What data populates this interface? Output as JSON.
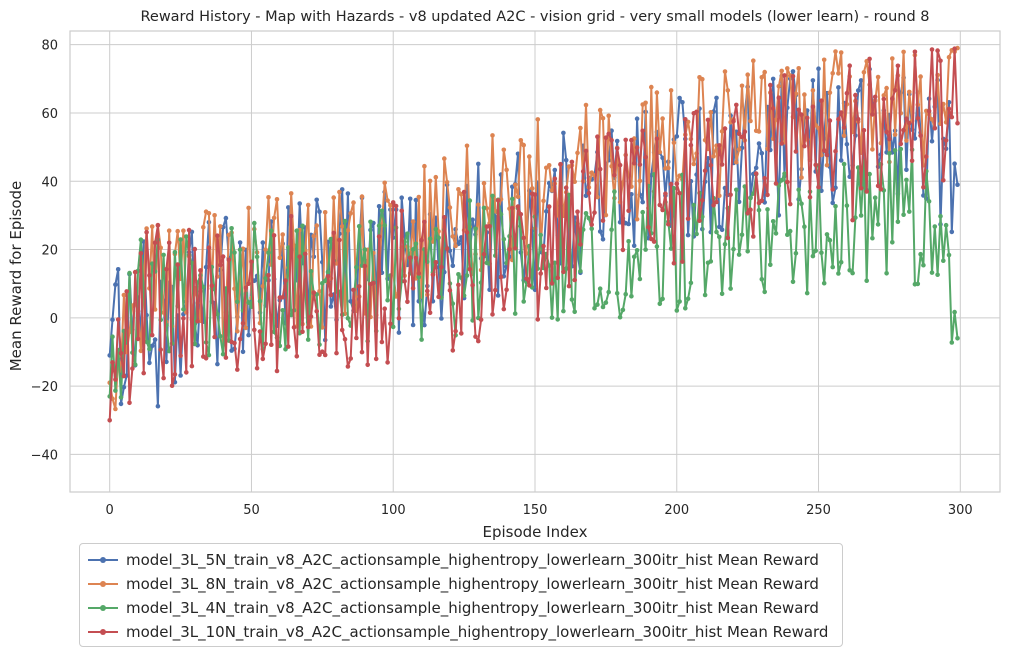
{
  "chart_data": {
    "type": "line",
    "title": "Reward History - Map with Hazards - v8 updated A2C - vision grid - very small models (lower learn) - round 8",
    "xlabel": "Episode Index",
    "ylabel": "Mean Reward for Episode",
    "xlim": [
      -14,
      314
    ],
    "ylim": [
      -51,
      84
    ],
    "xticks": [
      0,
      50,
      100,
      150,
      200,
      250,
      300
    ],
    "yticks": [
      -40,
      -20,
      0,
      20,
      40,
      60,
      80
    ],
    "grid": true,
    "legend_position": "below-left",
    "x": "episodes 0-299 (one point per episode)",
    "series": [
      {
        "name": "model_3L_5N_train_v8_A2C_actionsample_highentropy_lowerlearn_300itr_hist Mean Reward",
        "color": "#4c72b0",
        "start": -11,
        "end": 39,
        "control": [
          [
            0,
            -11
          ],
          [
            10,
            4
          ],
          [
            20,
            -13
          ],
          [
            30,
            6
          ],
          [
            40,
            8
          ],
          [
            50,
            10
          ],
          [
            60,
            14
          ],
          [
            70,
            12
          ],
          [
            80,
            16
          ],
          [
            90,
            15
          ],
          [
            100,
            17
          ],
          [
            110,
            16
          ],
          [
            120,
            20
          ],
          [
            130,
            24
          ],
          [
            140,
            26
          ],
          [
            150,
            30
          ],
          [
            160,
            33
          ],
          [
            170,
            36
          ],
          [
            180,
            38
          ],
          [
            190,
            42
          ],
          [
            200,
            45
          ],
          [
            210,
            46
          ],
          [
            220,
            44
          ],
          [
            230,
            48
          ],
          [
            240,
            50
          ],
          [
            250,
            52
          ],
          [
            260,
            53
          ],
          [
            270,
            52
          ],
          [
            280,
            55
          ],
          [
            290,
            54
          ],
          [
            299,
            39
          ]
        ],
        "spread": 22,
        "min": -33,
        "max": 76
      },
      {
        "name": "model_3L_8N_train_v8_A2C_actionsample_highentropy_lowerlearn_300itr_hist Mean Reward",
        "color": "#dd8452",
        "start": -19,
        "end": 79,
        "control": [
          [
            0,
            -19
          ],
          [
            10,
            8
          ],
          [
            20,
            10
          ],
          [
            30,
            12
          ],
          [
            40,
            12
          ],
          [
            50,
            14
          ],
          [
            60,
            18
          ],
          [
            70,
            16
          ],
          [
            80,
            18
          ],
          [
            90,
            18
          ],
          [
            100,
            22
          ],
          [
            110,
            26
          ],
          [
            120,
            28
          ],
          [
            130,
            32
          ],
          [
            140,
            35
          ],
          [
            150,
            38
          ],
          [
            160,
            40
          ],
          [
            170,
            44
          ],
          [
            180,
            46
          ],
          [
            190,
            48
          ],
          [
            200,
            50
          ],
          [
            210,
            52
          ],
          [
            220,
            54
          ],
          [
            230,
            56
          ],
          [
            240,
            58
          ],
          [
            250,
            60
          ],
          [
            260,
            62
          ],
          [
            270,
            62
          ],
          [
            280,
            63
          ],
          [
            290,
            64
          ],
          [
            299,
            79
          ]
        ],
        "spread": 20,
        "min": -27,
        "max": 79
      },
      {
        "name": "model_3L_4N_train_v8_A2C_actionsample_highentropy_lowerlearn_300itr_hist Mean Reward",
        "color": "#55a868",
        "start": -23,
        "end": -6,
        "control": [
          [
            0,
            -23
          ],
          [
            10,
            6
          ],
          [
            20,
            6
          ],
          [
            30,
            6
          ],
          [
            40,
            8
          ],
          [
            50,
            8
          ],
          [
            60,
            10
          ],
          [
            70,
            12
          ],
          [
            80,
            10
          ],
          [
            90,
            12
          ],
          [
            100,
            14
          ],
          [
            110,
            12
          ],
          [
            120,
            14
          ],
          [
            130,
            16
          ],
          [
            140,
            16
          ],
          [
            150,
            18
          ],
          [
            160,
            18
          ],
          [
            170,
            20
          ],
          [
            180,
            20
          ],
          [
            190,
            22
          ],
          [
            200,
            22
          ],
          [
            210,
            24
          ],
          [
            220,
            24
          ],
          [
            230,
            24
          ],
          [
            240,
            26
          ],
          [
            250,
            26
          ],
          [
            260,
            26
          ],
          [
            270,
            28
          ],
          [
            280,
            30
          ],
          [
            290,
            28
          ],
          [
            299,
            -6
          ]
        ],
        "spread": 20,
        "min": -25,
        "max": 72
      },
      {
        "name": "model_3L_10N_train_v8_A2C_actionsample_highentropy_lowerlearn_300itr_hist Mean Reward",
        "color": "#c44e52",
        "start": -30,
        "end": 57,
        "control": [
          [
            0,
            -30
          ],
          [
            10,
            4
          ],
          [
            20,
            4
          ],
          [
            30,
            2
          ],
          [
            40,
            4
          ],
          [
            50,
            4
          ],
          [
            60,
            6
          ],
          [
            70,
            6
          ],
          [
            80,
            8
          ],
          [
            90,
            6
          ],
          [
            100,
            10
          ],
          [
            110,
            10
          ],
          [
            120,
            14
          ],
          [
            130,
            16
          ],
          [
            140,
            18
          ],
          [
            150,
            22
          ],
          [
            160,
            26
          ],
          [
            170,
            30
          ],
          [
            180,
            32
          ],
          [
            190,
            36
          ],
          [
            200,
            40
          ],
          [
            210,
            42
          ],
          [
            220,
            44
          ],
          [
            230,
            46
          ],
          [
            240,
            48
          ],
          [
            250,
            50
          ],
          [
            260,
            52
          ],
          [
            270,
            54
          ],
          [
            280,
            54
          ],
          [
            290,
            56
          ],
          [
            299,
            57
          ]
        ],
        "spread": 24,
        "min": -45,
        "max": 79
      }
    ]
  }
}
